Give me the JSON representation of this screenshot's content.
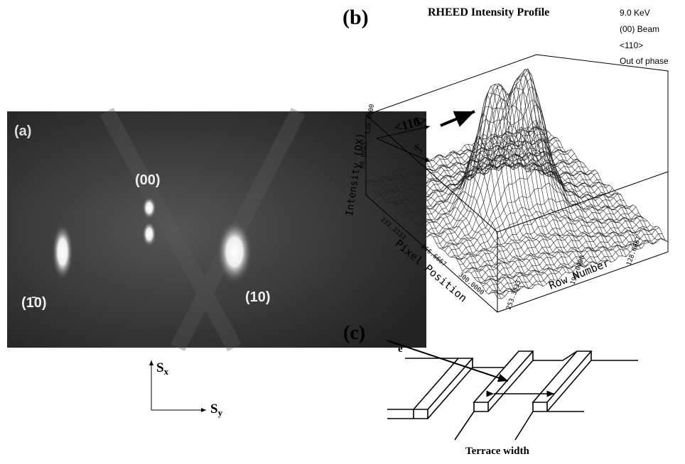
{
  "panel_a": {
    "label": "(a)",
    "spots": [
      "(00)",
      "(1̄0)",
      "(10)"
    ],
    "axes": {
      "x": {
        "base": "S",
        "sub": "x"
      },
      "y": {
        "base": "S",
        "sub": "y"
      }
    }
  },
  "panel_b": {
    "label": "(b)",
    "title": "RHEED Intensity Profile",
    "notes": [
      "9.0 KeV",
      "(00) Beam",
      "<110>",
      "Out of phase"
    ],
    "direction": "<110>",
    "sx": {
      "base": "S",
      "sub": "x"
    },
    "sy": {
      "base": "S",
      "sub": "y"
    },
    "z_axis": {
      "title": "Intensity (DX)",
      "ticks": [
        "86.6667",
        "130.0000"
      ]
    },
    "x_axis": {
      "title": "Pixel Position",
      "ticks": [
        "233.3333",
        "266.6667",
        "300.0000"
      ]
    },
    "y_axis": {
      "title": "Row Number",
      "ticks": [
        "253.3333",
        "190.0000",
        "128.6667"
      ]
    }
  },
  "panel_c": {
    "label": "(c)",
    "beam": {
      "base": "e",
      "sup": "-"
    },
    "caption": "Terrace width"
  }
}
